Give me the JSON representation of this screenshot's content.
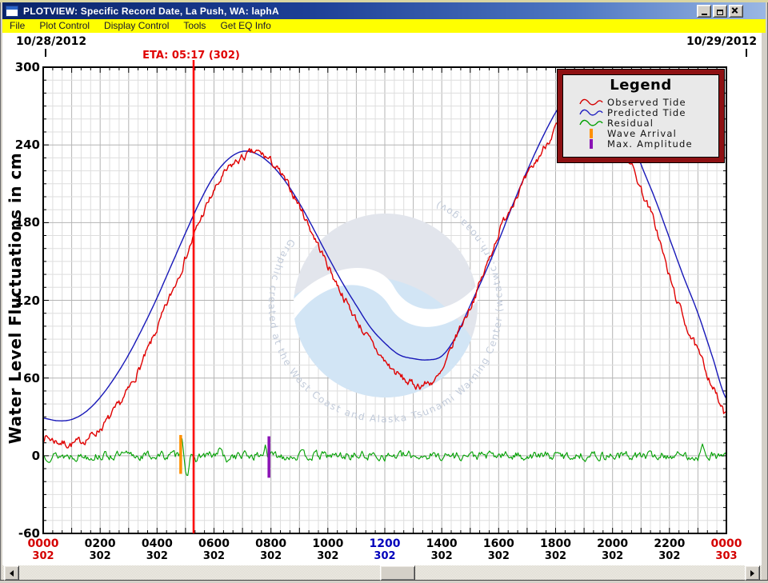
{
  "window": {
    "title": "PLOTVIEW: Specific Record Date, La Push, WA: laphA"
  },
  "menu_bar": {
    "items": [
      "File",
      "Plot Control",
      "Display Control",
      "Tools",
      "Get EQ Info"
    ]
  },
  "plot_header": {
    "date_left": "10/28/2012",
    "date_right": "10/29/2012",
    "eta_label": "ETA: 05:17 (302)"
  },
  "y_axis": {
    "title": "Water Level Fluctuations in cm",
    "ticks": [
      300,
      240,
      180,
      120,
      60,
      0,
      -60
    ]
  },
  "x_axis": {
    "ticks": [
      {
        "time": "0000",
        "day": "302",
        "color": "#d40000"
      },
      {
        "time": "0200",
        "day": "302",
        "color": "#000000"
      },
      {
        "time": "0400",
        "day": "302",
        "color": "#000000"
      },
      {
        "time": "0600",
        "day": "302",
        "color": "#000000"
      },
      {
        "time": "0800",
        "day": "302",
        "color": "#000000"
      },
      {
        "time": "1000",
        "day": "302",
        "color": "#000000"
      },
      {
        "time": "1200",
        "day": "302",
        "color": "#0000bb"
      },
      {
        "time": "1400",
        "day": "302",
        "color": "#000000"
      },
      {
        "time": "1600",
        "day": "302",
        "color": "#000000"
      },
      {
        "time": "1800",
        "day": "302",
        "color": "#000000"
      },
      {
        "time": "2000",
        "day": "302",
        "color": "#000000"
      },
      {
        "time": "2200",
        "day": "302",
        "color": "#000000"
      },
      {
        "time": "0000",
        "day": "303",
        "color": "#d40000"
      }
    ]
  },
  "legend": {
    "title": "Legend",
    "border_color": "#8e1113",
    "items": [
      {
        "label": "Observed Tide",
        "color": "#d40000",
        "icon": "squiggle"
      },
      {
        "label": "Predicted Tide",
        "color": "#2020c0",
        "icon": "squiggle"
      },
      {
        "label": "Residual",
        "color": "#00a000",
        "icon": "squiggle"
      },
      {
        "label": "Wave Arrival",
        "color": "#ff9000",
        "icon": "vbar"
      },
      {
        "label": "Max. Amplitude",
        "color": "#8a12b4",
        "icon": "vbar"
      }
    ]
  },
  "watermark": {
    "ring_text": "Graphic created at the West Coast and Alaska Tsunami Warning Center (wcatwc.arh.noaa.gov)"
  },
  "chart_data": {
    "type": "line",
    "x_unit": "hours after 2012-10-28 00:00 (day-of-year 302)",
    "xlim_hours": [
      0,
      24
    ],
    "ylim": [
      -60,
      300
    ],
    "grid": {
      "x_minor_hours": 0.3333,
      "x_major_hours": 1,
      "y_minor_cm": 10,
      "y_major_cm": 60
    },
    "t_start": 0,
    "t_step": 0.5,
    "series": [
      {
        "name": "Observed Tide",
        "color": "#e00000",
        "noise_amp": 2.6,
        "values": [
          15,
          11,
          9,
          13,
          21,
          34,
          51,
          73,
          98,
          125,
          153,
          181,
          204,
          221,
          230,
          234,
          227,
          212,
          193,
          170,
          147,
          125,
          105,
          88,
          73,
          62,
          55,
          56,
          64,
          92,
          115,
          142,
          172,
          196,
          215,
          234,
          253,
          269,
          280,
          283,
          262,
          234,
          206,
          178,
          138,
          106,
          80,
          55,
          30
        ]
      },
      {
        "name": "Predicted Tide",
        "color": "#1818b8",
        "noise_amp": 0,
        "values": [
          29,
          27,
          28,
          34,
          45,
          60,
          78,
          99,
          122,
          147,
          172,
          196,
          216,
          229,
          235,
          233,
          225,
          212,
          195,
          175,
          154,
          134,
          116,
          99,
          87,
          78,
          75,
          74,
          77,
          92,
          116,
          140,
          166,
          194,
          220,
          244,
          265,
          281,
          290,
          292,
          280,
          255,
          225,
          198,
          168,
          138,
          110,
          77,
          44
        ]
      },
      {
        "name": "Residual",
        "color": "#00a000",
        "baseline": 0,
        "noise_amp": 2.9,
        "spikes": [
          {
            "t": 4.87,
            "amp": 14,
            "w": 0.07
          },
          {
            "t": 5.05,
            "amp": -13,
            "w": 0.09
          },
          {
            "t": 5.3,
            "amp": -5,
            "w": 0.1
          },
          {
            "t": 6.2,
            "amp": 7,
            "w": 0.06
          },
          {
            "t": 6.45,
            "amp": -8,
            "w": 0.06
          },
          {
            "t": 7.8,
            "amp": 9,
            "w": 0.06
          },
          {
            "t": 23.2,
            "amp": 7,
            "w": 0.09
          }
        ]
      }
    ],
    "markers": {
      "eta": {
        "label": "ETA: 05:17 (302)",
        "t": 5.283,
        "color": "#ff0000"
      },
      "wave_arrival": {
        "t": 4.83,
        "from_cm": -14,
        "to_cm": 16,
        "color": "#ff9000"
      },
      "max_amplitude": {
        "t": 7.93,
        "from_cm": -17,
        "to_cm": 15,
        "color": "#8a12b4"
      }
    }
  }
}
